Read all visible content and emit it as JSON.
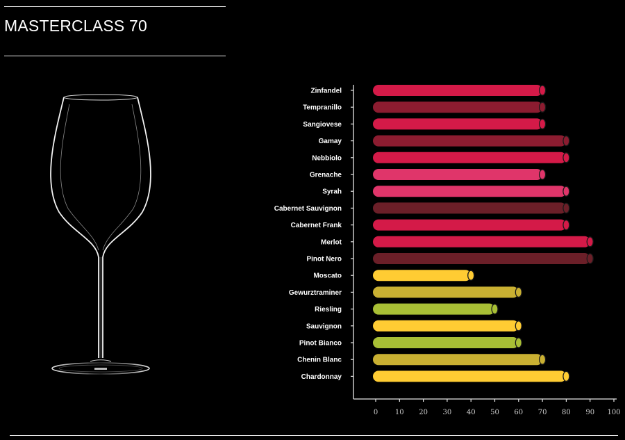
{
  "title": "MASTERCLASS 70",
  "chart_data": {
    "type": "bar",
    "orientation": "horizontal",
    "categories": [
      "Zinfandel",
      "Tempranillo",
      "Sangiovese",
      "Gamay",
      "Nebbiolo",
      "Grenache",
      "Syrah",
      "Cabernet Sauvignon",
      "Cabernet Frank",
      "Merlot",
      "Pinot Nero",
      "Moscato",
      "Gewurztraminer",
      "Riesling",
      "Sauvignon",
      "Pinot Bianco",
      "Chenin Blanc",
      "Chardonnay"
    ],
    "values": [
      70,
      70,
      70,
      80,
      80,
      70,
      80,
      80,
      80,
      90,
      90,
      40,
      60,
      50,
      60,
      60,
      70,
      80
    ],
    "colors": [
      "#d41a48",
      "#8c1c30",
      "#d41a48",
      "#8c1c30",
      "#d41a48",
      "#e0356a",
      "#e0356a",
      "#6b1f28",
      "#d41a48",
      "#d41a48",
      "#6b1f28",
      "#ffcc33",
      "#c9b032",
      "#a8bf35",
      "#ffcc33",
      "#a8bf35",
      "#c9b032",
      "#ffcc33"
    ],
    "xlim": [
      0,
      100
    ],
    "xticks": [
      "0",
      "10",
      "20",
      "30",
      "40",
      "50",
      "60",
      "70",
      "80",
      "90",
      "100"
    ],
    "grid": false
  }
}
